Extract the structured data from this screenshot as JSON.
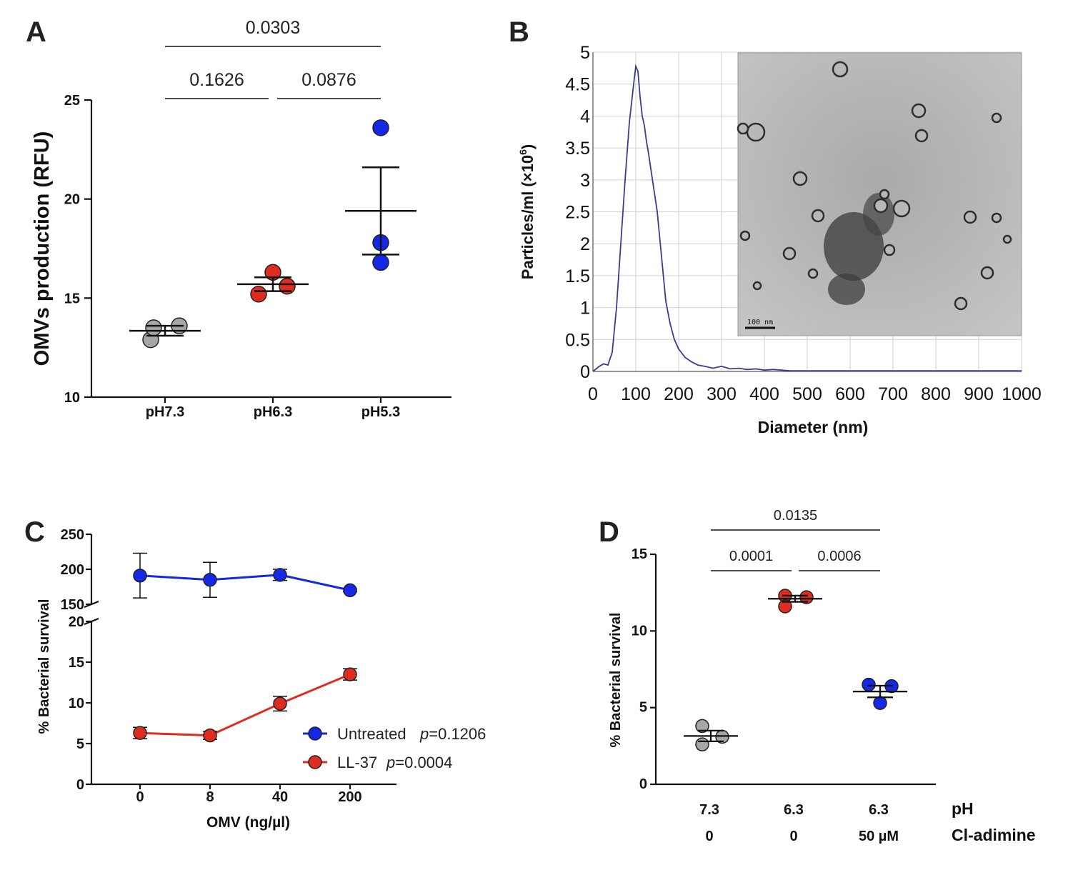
{
  "chart_data": [
    {
      "panel": "A",
      "type": "scatter",
      "ylabel": "OMVs production (RFU)",
      "ylim": [
        10,
        25
      ],
      "yticks": [
        "10",
        "15",
        "20",
        "25"
      ],
      "categories": [
        "pH7.3",
        "pH6.3",
        "pH5.3"
      ],
      "points": [
        [
          12.9,
          13.5,
          13.6
        ],
        [
          15.2,
          16.3,
          15.6
        ],
        [
          23.6,
          17.8,
          16.8
        ]
      ],
      "mean": [
        13.35,
        15.7,
        19.4
      ],
      "sem": [
        0.25,
        0.35,
        2.2
      ],
      "colors": [
        "#a6a6a6",
        "#e02b20",
        "#1428e6"
      ],
      "comparisons": [
        {
          "from": 0,
          "to": 1,
          "label": "0.1626",
          "level": 1
        },
        {
          "from": 1,
          "to": 2,
          "label": "0.0876",
          "level": 1
        },
        {
          "from": 0,
          "to": 2,
          "label": "0.0303",
          "level": 2
        }
      ]
    },
    {
      "panel": "B",
      "type": "line",
      "xlabel": "Diameter (nm)",
      "ylabel": "Particles/ml (×10",
      "ylabel_sup": "6",
      "ylabel_end": ")",
      "xlim": [
        0,
        1000
      ],
      "ylim": [
        0,
        5
      ],
      "xticks": [
        "0",
        "100",
        "200",
        "300",
        "400",
        "500",
        "600",
        "700",
        "800",
        "900",
        "1000"
      ],
      "yticks": [
        "0",
        "0.5",
        "1",
        "1.5",
        "2",
        "2.5",
        "3",
        "3.5",
        "4",
        "4.5",
        "5"
      ],
      "grid": true,
      "line_color": "#3b3b8f",
      "x": [
        0,
        15,
        25,
        35,
        45,
        55,
        65,
        75,
        85,
        95,
        100,
        105,
        110,
        115,
        120,
        125,
        130,
        140,
        150,
        160,
        170,
        180,
        190,
        200,
        215,
        230,
        245,
        260,
        280,
        300,
        320,
        340,
        360,
        380,
        400,
        420,
        440,
        460,
        480,
        500,
        600,
        700,
        800,
        900,
        1000
      ],
      "y": [
        0,
        0.08,
        0.12,
        0.1,
        0.3,
        1.0,
        2.0,
        3.0,
        3.9,
        4.5,
        4.78,
        4.7,
        4.3,
        4.0,
        3.85,
        3.6,
        3.4,
        2.95,
        2.5,
        1.8,
        1.1,
        0.75,
        0.5,
        0.35,
        0.22,
        0.15,
        0.1,
        0.08,
        0.05,
        0.08,
        0.04,
        0.05,
        0.03,
        0.04,
        0.02,
        0.03,
        0.02,
        0.01,
        0.01,
        0.01,
        0.01,
        0.01,
        0.01,
        0.01,
        0.01
      ],
      "inset_scale_label": "100 nm"
    },
    {
      "panel": "C",
      "type": "line",
      "xlabel": "OMV (ng/µl)",
      "ylabel": "% Bacterial survival",
      "categories": [
        "0",
        "8",
        "40",
        "200"
      ],
      "upper_ylim": [
        150,
        250
      ],
      "upper_yticks": [
        "150",
        "200",
        "250"
      ],
      "lower_ylim": [
        0,
        20
      ],
      "lower_yticks": [
        "0",
        "5",
        "10",
        "15",
        "20"
      ],
      "series": [
        {
          "name": "Untreated",
          "p": "p",
          "pval": "=0.1206",
          "color": "#1428e6",
          "values": [
            191,
            185,
            192,
            170
          ],
          "err": [
            32,
            25,
            8,
            2
          ]
        },
        {
          "name": "LL-37",
          "p": "p",
          "pval": "=0.0004",
          "color": "#e02b20",
          "values": [
            6.3,
            6.0,
            9.9,
            13.5
          ],
          "err": [
            0.7,
            0.5,
            0.9,
            0.7
          ]
        }
      ]
    },
    {
      "panel": "D",
      "type": "scatter",
      "ylabel": "% Bacterial survival",
      "ylim": [
        0,
        15
      ],
      "yticks": [
        "0",
        "5",
        "10",
        "15"
      ],
      "row_labels": [
        "pH",
        "Cl-adimine"
      ],
      "ph_values": [
        "7.3",
        "6.3",
        "6.3"
      ],
      "cladimine_values": [
        "0",
        "0",
        "50 µM"
      ],
      "points": [
        [
          3.8,
          2.6,
          3.1
        ],
        [
          12.3,
          11.6,
          12.2
        ],
        [
          6.5,
          5.3,
          6.4
        ]
      ],
      "mean": [
        3.15,
        12.1,
        6.05
      ],
      "sem": [
        0.35,
        0.2,
        0.38
      ],
      "colors": [
        "#a6a6a6",
        "#e02b20",
        "#1428e6"
      ],
      "comparisons": [
        {
          "from": 0,
          "to": 1,
          "label": "0.0001",
          "level": 1
        },
        {
          "from": 1,
          "to": 2,
          "label": "0.0006",
          "level": 1
        },
        {
          "from": 0,
          "to": 2,
          "label": "0.0135",
          "level": 2
        }
      ]
    }
  ]
}
